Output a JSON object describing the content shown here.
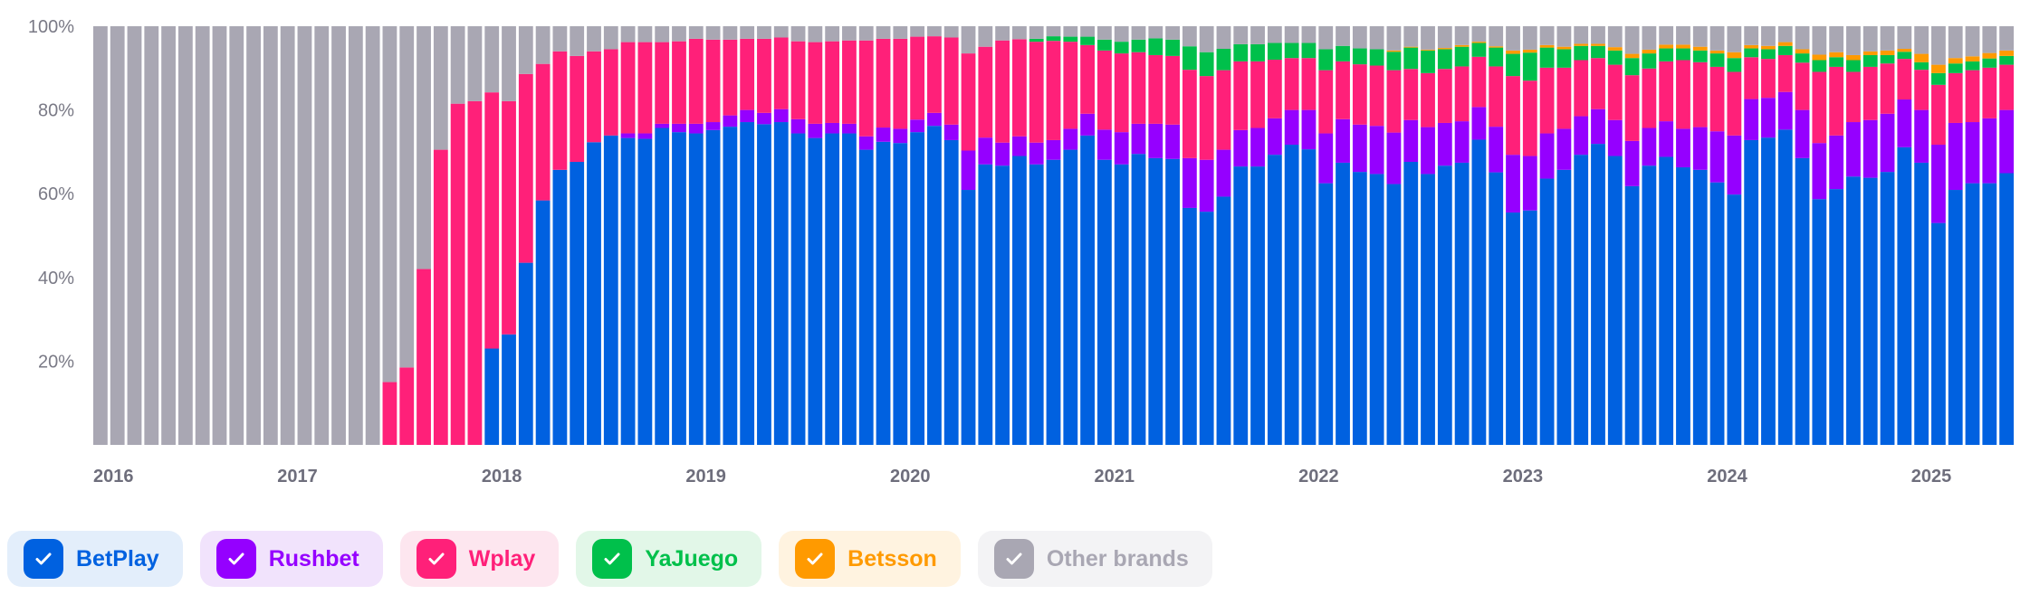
{
  "chart_data": {
    "type": "bar",
    "stacked": true,
    "normalized": true,
    "x_start": "2016-01",
    "frequency": "monthly",
    "count": 113,
    "ylim": [
      0,
      100
    ],
    "yticks": [
      "20%",
      "40%",
      "60%",
      "80%",
      "100%"
    ],
    "ytick_values": [
      20,
      40,
      60,
      80,
      100
    ],
    "xticks": [
      "2016",
      "2017",
      "2018",
      "2019",
      "2020",
      "2021",
      "2022",
      "2023",
      "2024",
      "2025"
    ],
    "grid": false,
    "legend_position": "bottom-left",
    "series": [
      {
        "name": "BetPlay",
        "color": "#0061e0",
        "bg": "#e3eefb",
        "values": [
          0,
          0,
          0,
          0,
          0,
          0,
          0,
          0,
          0,
          0,
          0,
          0,
          0,
          0,
          0,
          0,
          0,
          0,
          0,
          0,
          0,
          0,
          0,
          23.0,
          26.4,
          43.5,
          58.4,
          65.7,
          67.6,
          72.3,
          73.9,
          73.3,
          73.1,
          75.7,
          74.7,
          74.4,
          75.2,
          76.0,
          77.1,
          76.6,
          77.1,
          74.4,
          73.3,
          74.4,
          74.4,
          70.5,
          72.4,
          72.1,
          74.7,
          76.2,
          72.8,
          60.9,
          67.0,
          66.7,
          69.0,
          67.0,
          68.1,
          70.5,
          73.9,
          68.1,
          67.0,
          69.5,
          68.5,
          68.3,
          56.6,
          55.7,
          59.3,
          66.5,
          66.5,
          69.3,
          71.7,
          70.6,
          62.5,
          67.4,
          65.2,
          64.7,
          62.3,
          67.6,
          64.7,
          66.7,
          67.4,
          72.9,
          65.1,
          55.5,
          56.0,
          63.6,
          65.7,
          69.3,
          71.9,
          69.0,
          61.8,
          66.7,
          68.8,
          66.3,
          65.7,
          62.7,
          59.8,
          72.8,
          73.4,
          75.3,
          68.5,
          58.7,
          61.1,
          64.1,
          63.8,
          65.2,
          71.1,
          67.4,
          53.0,
          60.9,
          62.5,
          62.5,
          64.9
        ]
      },
      {
        "name": "Rushbet",
        "color": "#9500ff",
        "bg": "#f1e3fc",
        "values": [
          0,
          0,
          0,
          0,
          0,
          0,
          0,
          0,
          0,
          0,
          0,
          0,
          0,
          0,
          0,
          0,
          0,
          0,
          0,
          0,
          0,
          0,
          0,
          0,
          0,
          0,
          0,
          0,
          0,
          0,
          0,
          1.1,
          1.3,
          1.0,
          2.0,
          2.3,
          1.9,
          2.7,
          2.9,
          2.7,
          3.1,
          3.4,
          3.4,
          2.5,
          2.3,
          3.2,
          3.4,
          3.4,
          3.0,
          3.1,
          3.7,
          9.4,
          6.4,
          5.5,
          4.7,
          5.2,
          4.7,
          5.0,
          5.2,
          7.2,
          7.7,
          7.2,
          8.2,
          8.2,
          11.9,
          12.4,
          11.2,
          8.7,
          9.2,
          8.7,
          8.3,
          9.4,
          11.9,
          10.4,
          11.3,
          11.5,
          12.3,
          10.0,
          11.2,
          10.2,
          9.9,
          7.8,
          10.9,
          13.8,
          13.0,
          10.8,
          9.8,
          9.2,
          8.3,
          8.6,
          10.8,
          9.0,
          8.5,
          9.2,
          10.2,
          12.2,
          14.1,
          9.8,
          9.5,
          9.0,
          11.5,
          13.4,
          12.8,
          13.0,
          13.8,
          13.9,
          11.4,
          12.6,
          18.7,
          16.0,
          14.6,
          15.5,
          15.1
        ]
      },
      {
        "name": "Wplay",
        "color": "#ff2079",
        "bg": "#fde6ef",
        "values": [
          0,
          0,
          0,
          0,
          0,
          0,
          0,
          0,
          0,
          0,
          0,
          0,
          0,
          0,
          0,
          0,
          0,
          15.0,
          18.5,
          42.0,
          70.5,
          81.5,
          82.1,
          61.2,
          55.7,
          45.1,
          32.6,
          28.3,
          25.3,
          21.7,
          20.6,
          21.8,
          21.8,
          19.5,
          19.7,
          20.3,
          19.7,
          18.1,
          17.0,
          17.7,
          17.1,
          18.6,
          19.5,
          19.5,
          19.9,
          22.9,
          21.2,
          21.5,
          19.8,
          18.3,
          20.8,
          23.2,
          21.7,
          24.4,
          23.2,
          24.1,
          23.7,
          20.8,
          16.4,
          18.9,
          18.8,
          17.1,
          16.4,
          16.4,
          21.1,
          20.0,
          19.0,
          16.4,
          15.9,
          14.0,
          12.4,
          12.4,
          15.1,
          13.8,
          14.4,
          14.4,
          14.9,
          12.2,
          12.9,
          12.9,
          13.1,
          12.0,
          14.4,
          18.8,
          18.0,
          15.7,
          14.6,
          13.4,
          12.2,
          13.2,
          15.7,
          14.2,
          14.3,
          16.4,
          15.5,
          15.4,
          15.2,
          10.0,
          9.3,
          8.8,
          11.3,
          17.0,
          16.4,
          12.0,
          12.7,
          12.0,
          9.7,
          9.6,
          14.3,
          11.9,
          12.4,
          12.1,
          10.8
        ]
      },
      {
        "name": "YaJuego",
        "color": "#00c04b",
        "bg": "#e2f7e8",
        "values": [
          0,
          0,
          0,
          0,
          0,
          0,
          0,
          0,
          0,
          0,
          0,
          0,
          0,
          0,
          0,
          0,
          0,
          0,
          0,
          0,
          0,
          0,
          0,
          0,
          0,
          0,
          0,
          0,
          0,
          0,
          0,
          0,
          0,
          0,
          0,
          0,
          0,
          0,
          0,
          0,
          0,
          0,
          0,
          0,
          0,
          0,
          0,
          0,
          0,
          0,
          0,
          0,
          0,
          0,
          0,
          0.7,
          1.1,
          1.2,
          2.0,
          2.6,
          2.8,
          3.0,
          4.0,
          3.9,
          5.6,
          5.7,
          5.1,
          4.1,
          4.1,
          4.0,
          3.6,
          3.6,
          5.0,
          3.7,
          3.8,
          3.9,
          4.4,
          5.1,
          5.4,
          4.7,
          4.7,
          3.3,
          4.5,
          5.3,
          6.7,
          4.8,
          4.4,
          3.4,
          2.9,
          3.4,
          4.1,
          3.6,
          3.1,
          2.8,
          2.8,
          3.2,
          3.3,
          2.1,
          2.3,
          2.2,
          2.2,
          2.8,
          2.3,
          2.8,
          2.8,
          2.0,
          1.7,
          1.8,
          2.8,
          2.3,
          2.1,
          2.2,
          2.1
        ]
      },
      {
        "name": "Betsson",
        "color": "#ff9a00",
        "bg": "#fff3e0",
        "values": [
          0,
          0,
          0,
          0,
          0,
          0,
          0,
          0,
          0,
          0,
          0,
          0,
          0,
          0,
          0,
          0,
          0,
          0,
          0,
          0,
          0,
          0,
          0,
          0,
          0,
          0,
          0,
          0,
          0,
          0,
          0,
          0,
          0,
          0,
          0,
          0,
          0,
          0,
          0,
          0,
          0,
          0,
          0,
          0,
          0,
          0,
          0,
          0,
          0,
          0,
          0,
          0,
          0,
          0,
          0,
          0,
          0,
          0,
          0,
          0,
          0,
          0,
          0,
          0,
          0,
          0,
          0,
          0,
          0,
          0,
          0,
          0,
          0,
          0,
          0,
          0,
          0.3,
          0.2,
          0.2,
          0.3,
          0.4,
          0.3,
          0.3,
          0.8,
          0.7,
          0.6,
          0.6,
          0.5,
          0.5,
          0.8,
          1.0,
          0.9,
          0.9,
          0.9,
          0.9,
          0.7,
          1.4,
          0.8,
          0.8,
          0.9,
          1.0,
          1.3,
          1.2,
          1.2,
          0.9,
          1.1,
          0.7,
          2.0,
          2.0,
          1.3,
          1.2,
          1.3,
          1.3
        ]
      },
      {
        "name": "Other brands",
        "color": "#a9a7b3",
        "bg": "#f3f3f5",
        "remainder": true
      }
    ]
  }
}
